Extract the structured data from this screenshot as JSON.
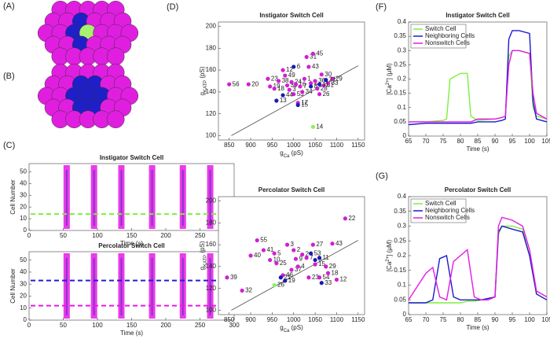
{
  "panels": [
    "(A)",
    "(B)",
    "(C)",
    "(D)",
    "(E)",
    "(F)",
    "(G)"
  ],
  "chart_data": [
    {
      "type": "raster",
      "title": "Instigator Switch Cell",
      "xlabel": [
        {
          "text": "Time (s)"
        }
      ],
      "ylabel": [
        {
          "text": "Cell Number"
        }
      ],
      "xlim": [
        0,
        300
      ],
      "xticks": [
        0,
        50,
        100,
        150,
        200,
        250,
        300
      ],
      "ylim": [
        0,
        57
      ],
      "yticks": [
        0,
        10,
        20,
        30,
        40,
        50
      ],
      "bursts": [
        55,
        95,
        135,
        180,
        225,
        265
      ],
      "burst_color": "#e619e6",
      "highlight_cells": [
        {
          "color": "#7cf03c",
          "value": 14
        }
      ]
    },
    {
      "type": "raster",
      "title": "Percolator Switch Cell",
      "xlabel": [
        {
          "text": "Time (s)"
        }
      ],
      "ylabel": [
        {
          "text": "Cell Number"
        }
      ],
      "xlim": [
        0,
        300
      ],
      "xticks": [
        0,
        50,
        100,
        150,
        200,
        250,
        300
      ],
      "ylim": [
        0,
        57
      ],
      "yticks": [
        0,
        10,
        20,
        30,
        40,
        50
      ],
      "bursts": [
        55,
        95,
        135,
        180,
        225,
        265
      ],
      "burst_color": "#e619e6",
      "highlight_cells": [
        {
          "color": "#2020d0",
          "value": 33
        },
        {
          "color": "#e619e6",
          "value": 12
        }
      ]
    },
    {
      "type": "scatter",
      "title": "Instigator Switch Cell",
      "xlabel": [
        {
          "text": "g"
        },
        {
          "text": "Ca",
          "shift": "sub"
        },
        {
          "text": " (pS)"
        }
      ],
      "ylabel": [
        {
          "text": "g"
        },
        {
          "text": "KATP",
          "shift": "sub"
        },
        {
          "text": " (pS)"
        }
      ],
      "xlim": [
        825,
        1165
      ],
      "xticks": [
        850,
        900,
        950,
        1000,
        1050,
        1100,
        1150
      ],
      "ylim": [
        96,
        204
      ],
      "yticks": [
        100,
        120,
        140,
        160,
        180,
        200
      ],
      "reference_line": {
        "x": [
          855,
          1150
        ],
        "values": [
          100,
          164
        ]
      },
      "series": [
        {
          "color": "#d21ed2",
          "x": [
            850,
            895,
            940,
            945,
            955,
            965,
            975,
            980,
            985,
            990,
            995,
            1000,
            1005,
            1010,
            1015,
            1020,
            1025,
            1030,
            1035,
            1040,
            1045,
            1050,
            1055,
            1060,
            1065,
            1070,
            1080,
            1090
          ],
          "values": [
            147,
            147,
            152,
            145,
            143,
            150,
            160,
            155,
            146,
            142,
            149,
            138,
            147,
            130,
            145,
            140,
            152,
            172,
            163,
            148,
            175,
            150,
            143,
            138,
            156,
            146,
            148,
            152
          ],
          "point_labels": [
            "56",
            "20",
            "23",
            "19",
            "18",
            "38",
            "12",
            "49",
            "35",
            "3",
            "24",
            "53",
            "16",
            "17",
            "7",
            "34",
            "1",
            "31",
            "43",
            "2",
            "45",
            "36",
            "28",
            "26",
            "30",
            "51",
            "33",
            "29"
          ]
        },
        {
          "color": "#1a1ab4",
          "x": [
            960,
            975,
            1000,
            1010,
            1040,
            1060,
            1075
          ],
          "values": [
            132,
            137,
            163,
            128,
            145,
            147,
            151
          ],
          "point_labels": [
            "13",
            "44",
            "6",
            "15",
            "8",
            "11",
            "21"
          ]
        },
        {
          "color": "#8ef060",
          "x": [
            1045
          ],
          "values": [
            108
          ],
          "point_labels": [
            "14"
          ]
        }
      ]
    },
    {
      "type": "scatter",
      "title": "Percolator Switch Cell",
      "xlabel": [
        {
          "text": "g"
        },
        {
          "text": "Ca",
          "shift": "sub"
        },
        {
          "text": " (pS)"
        }
      ],
      "ylabel": [
        {
          "text": "g"
        },
        {
          "text": "KATP",
          "shift": "sub"
        },
        {
          "text": " (pS)"
        }
      ],
      "xlim": [
        825,
        1165
      ],
      "xticks": [
        850,
        900,
        950,
        1000,
        1050,
        1100,
        1150
      ],
      "ylim": [
        96,
        204
      ],
      "yticks": [
        100,
        120,
        140,
        160,
        180,
        200
      ],
      "reference_line": {
        "x": [
          855,
          1150
        ],
        "values": [
          100,
          164
        ]
      },
      "series": [
        {
          "color": "#d21ed2",
          "x": [
            845,
            880,
            900,
            915,
            930,
            945,
            955,
            960,
            975,
            985,
            995,
            1000,
            1005,
            1010,
            1020,
            1030,
            1035,
            1045,
            1050,
            1060,
            1075,
            1080,
            1090,
            1100,
            1120
          ],
          "values": [
            130,
            118,
            150,
            164,
            155,
            146,
            152,
            143,
            132,
            160,
            137,
            155,
            147,
            140,
            151,
            148,
            130,
            160,
            142,
            130,
            140,
            134,
            161,
            128,
            184
          ],
          "point_labels": [
            "39",
            "32",
            "40",
            "55",
            "41",
            "10",
            "5",
            "25",
            "46",
            "3",
            "37",
            "2",
            "9",
            "4",
            "24",
            "7",
            "23",
            "27",
            "15",
            "54",
            "29",
            "18",
            "43",
            "12",
            "22"
          ]
        },
        {
          "color": "#1a1ab4",
          "x": [
            970,
            980,
            1040,
            1050,
            1060,
            1065
          ],
          "values": [
            130,
            127,
            152,
            146,
            148,
            125
          ],
          "point_labels": [
            "21",
            "19",
            "53",
            "6",
            "11",
            "33"
          ]
        },
        {
          "color": "#8ef060",
          "x": [
            955
          ],
          "values": [
            123
          ],
          "point_labels": [
            "26"
          ]
        }
      ]
    },
    {
      "type": "line",
      "title": "Instigator Switch Cell",
      "xlabel": [
        {
          "text": "Time (s)"
        }
      ],
      "ylabel": [
        {
          "text": "[Ca"
        },
        {
          "text": "2+",
          "shift": "super"
        },
        {
          "text": "] (μM)"
        }
      ],
      "xlim": [
        65,
        105
      ],
      "xticks": [
        65,
        70,
        75,
        80,
        85,
        90,
        95,
        100,
        105
      ],
      "ylim": [
        0,
        0.4
      ],
      "yticks": [
        0,
        0.05,
        0.1,
        0.15,
        0.2,
        0.25,
        0.3,
        0.35,
        0.4
      ],
      "legend": "upper left",
      "x": [
        65,
        70,
        75,
        76,
        77,
        80,
        82,
        83,
        85,
        90,
        92,
        93,
        94,
        95,
        97,
        100,
        101,
        102,
        105
      ],
      "series": [
        {
          "name": "Switch Cell",
          "color": "#7cf03c",
          "values": [
            0.05,
            0.05,
            0.055,
            0.06,
            0.2,
            0.22,
            0.22,
            0.07,
            0.055,
            0.06,
            0.065,
            0.07,
            0.28,
            0.3,
            0.3,
            0.29,
            0.1,
            0.07,
            0.06
          ]
        },
        {
          "name": "Neighboring Cells",
          "color": "#1a1ad0",
          "values": [
            0.04,
            0.045,
            0.045,
            0.045,
            0.045,
            0.045,
            0.045,
            0.045,
            0.05,
            0.05,
            0.055,
            0.06,
            0.34,
            0.37,
            0.37,
            0.36,
            0.12,
            0.06,
            0.05
          ]
        },
        {
          "name": "Nonswitch Cells",
          "color": "#e619e6",
          "values": [
            0.05,
            0.05,
            0.05,
            0.05,
            0.05,
            0.05,
            0.05,
            0.05,
            0.06,
            0.06,
            0.065,
            0.07,
            0.25,
            0.3,
            0.3,
            0.29,
            0.15,
            0.08,
            0.06
          ]
        }
      ]
    },
    {
      "type": "line",
      "title": "Percolator Switch Cell",
      "xlabel": [
        {
          "text": "Time (s)"
        }
      ],
      "ylabel": [
        {
          "text": "[Ca"
        },
        {
          "text": "2+",
          "shift": "super"
        },
        {
          "text": "] (μM)"
        }
      ],
      "xlim": [
        65,
        105
      ],
      "xticks": [
        65,
        70,
        75,
        80,
        85,
        90,
        95,
        100,
        105
      ],
      "ylim": [
        0,
        0.4
      ],
      "yticks": [
        0,
        0.05,
        0.1,
        0.15,
        0.2,
        0.25,
        0.3,
        0.35,
        0.4
      ],
      "legend": "upper left",
      "x": [
        65,
        70,
        72,
        74,
        76,
        78,
        80,
        82,
        84,
        86,
        88,
        90,
        91,
        92,
        95,
        98,
        100,
        102,
        105
      ],
      "series": [
        {
          "name": "Switch Cell",
          "color": "#7cf03c",
          "values": [
            0.04,
            0.04,
            0.04,
            0.04,
            0.04,
            0.04,
            0.04,
            0.045,
            0.045,
            0.05,
            0.055,
            0.06,
            0.27,
            0.3,
            0.3,
            0.29,
            0.2,
            0.07,
            0.05
          ]
        },
        {
          "name": "Neighboring Cells",
          "color": "#1a1ad0",
          "values": [
            0.04,
            0.04,
            0.05,
            0.19,
            0.2,
            0.06,
            0.05,
            0.05,
            0.05,
            0.05,
            0.055,
            0.06,
            0.28,
            0.3,
            0.29,
            0.28,
            0.2,
            0.07,
            0.05
          ]
        },
        {
          "name": "Nonswitch Cells",
          "color": "#e619e6",
          "values": [
            0.05,
            0.14,
            0.16,
            0.06,
            0.05,
            0.18,
            0.2,
            0.22,
            0.06,
            0.05,
            0.05,
            0.06,
            0.3,
            0.33,
            0.32,
            0.3,
            0.22,
            0.08,
            0.06
          ]
        }
      ]
    }
  ]
}
